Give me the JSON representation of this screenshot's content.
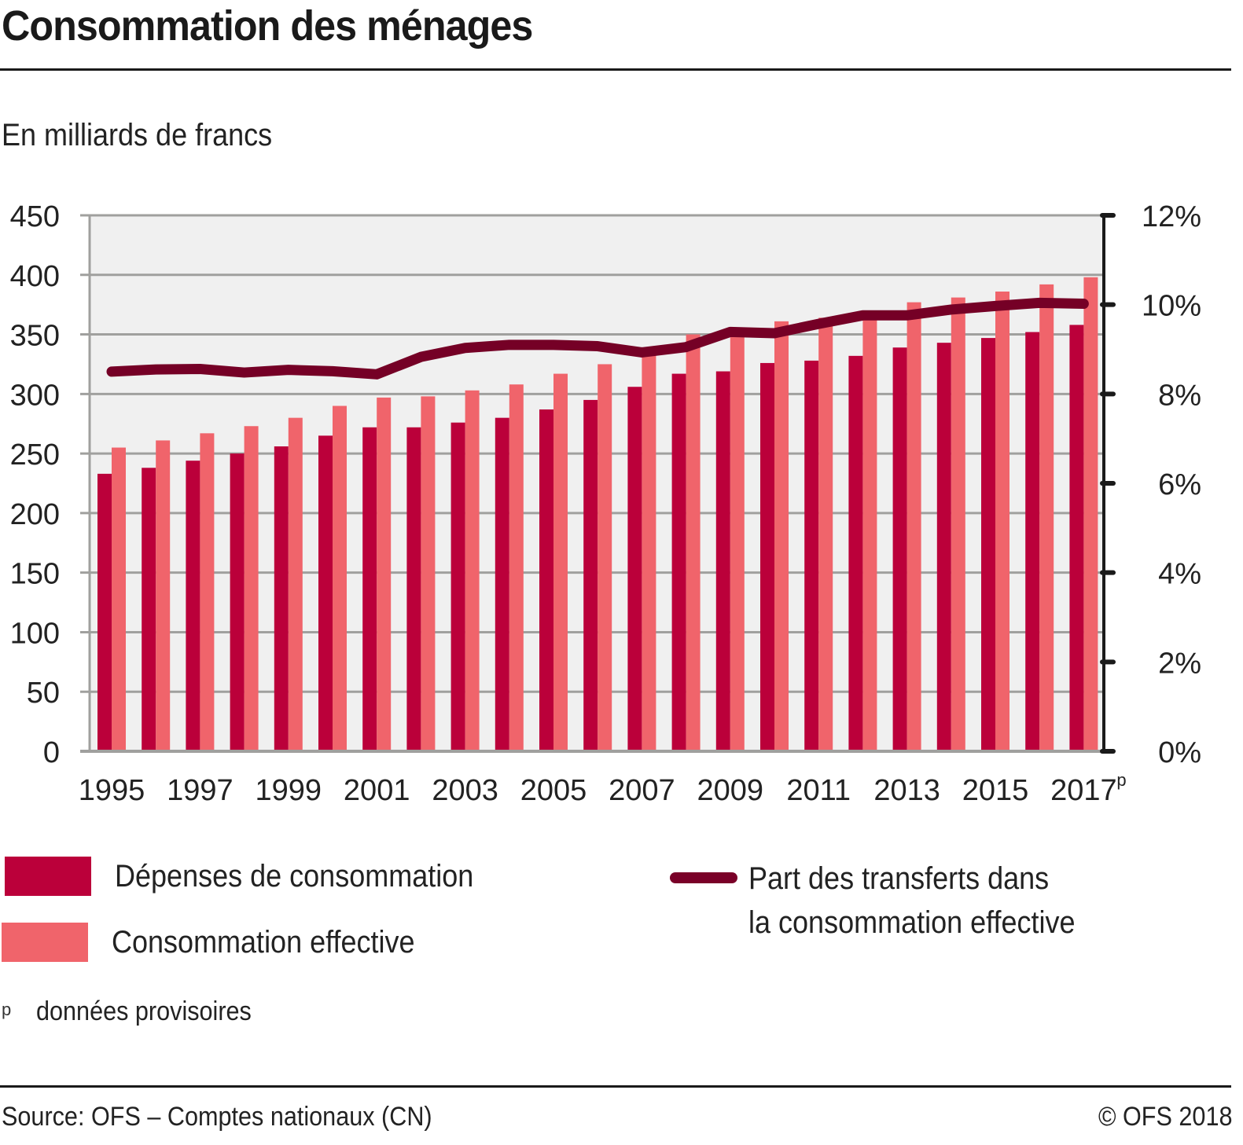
{
  "header": {
    "title": "Consommation des ménages",
    "subtitle": "En milliards de francs"
  },
  "chart_data": {
    "type": "bar",
    "title": "Consommation des ménages",
    "subtitle": "En milliards de francs",
    "xlabel": "",
    "ylabel": "En milliards de francs",
    "ylabel_right": "Part des transferts dans la consommation effective",
    "categories": [
      "1995",
      "1996",
      "1997",
      "1998",
      "1999",
      "2000",
      "2001",
      "2002",
      "2003",
      "2004",
      "2005",
      "2006",
      "2007",
      "2008",
      "2009",
      "2010",
      "2011",
      "2012",
      "2013",
      "2014",
      "2015",
      "2016",
      "2017"
    ],
    "x_tick_labels": [
      "1995",
      "1997",
      "1999",
      "2001",
      "2003",
      "2005",
      "2007",
      "2009",
      "2011",
      "2013",
      "2015",
      "2017"
    ],
    "x_tick_suffix_last": "p",
    "ylim": [
      0,
      450
    ],
    "yticks": [
      0,
      50,
      100,
      150,
      200,
      250,
      300,
      350,
      400,
      450
    ],
    "ylim_right": [
      0,
      12
    ],
    "yticks_right": [
      "0%",
      "2%",
      "4%",
      "6%",
      "8%",
      "10%",
      "12%"
    ],
    "yticks_right_values": [
      0,
      2,
      4,
      6,
      8,
      10,
      12
    ],
    "grid": true,
    "legend_position": "bottom",
    "series": [
      {
        "name": "Dépenses de consommation",
        "type": "bar",
        "axis": "left",
        "color": "#bb003a",
        "values": [
          233,
          238,
          244,
          250,
          256,
          265,
          272,
          272,
          276,
          280,
          287,
          295,
          306,
          317,
          319,
          326,
          328,
          332,
          339,
          343,
          347,
          352,
          358
        ]
      },
      {
        "name": "Consommation effective",
        "type": "bar",
        "axis": "left",
        "color": "#f0646b",
        "values": [
          255,
          261,
          267,
          273,
          280,
          290,
          297,
          298,
          303,
          308,
          317,
          325,
          334,
          350,
          353,
          361,
          364,
          369,
          377,
          381,
          386,
          392,
          398
        ]
      },
      {
        "name": "Part des transferts dans la consommation effective",
        "type": "line",
        "axis": "right",
        "unit": "%",
        "color": "#750026",
        "values": [
          8.5,
          8.55,
          8.56,
          8.48,
          8.54,
          8.51,
          8.44,
          8.83,
          9.03,
          9.1,
          9.1,
          9.07,
          8.93,
          9.05,
          9.39,
          9.36,
          9.57,
          9.76,
          9.76,
          9.89,
          9.97,
          10.04,
          10.02
        ]
      }
    ]
  },
  "legend": {
    "items": [
      {
        "label": "Dépenses de consommation",
        "color": "#bb003a"
      },
      {
        "label": "Consommation effective",
        "color": "#f0646b"
      },
      {
        "label_line1": "Part des transferts dans",
        "label_line2": "la consommation effective",
        "color": "#750026"
      }
    ]
  },
  "footnote": {
    "marker": "p",
    "text": "données provisoires"
  },
  "footer": {
    "source": "Source: OFS – Comptes nationaux (CN)",
    "copyright": "© OFS 2018"
  },
  "colors": {
    "plot_background": "#f0f0f0",
    "gridline": "#a0a09e",
    "axis_right": "#1a1a1a",
    "text": "#222222"
  }
}
